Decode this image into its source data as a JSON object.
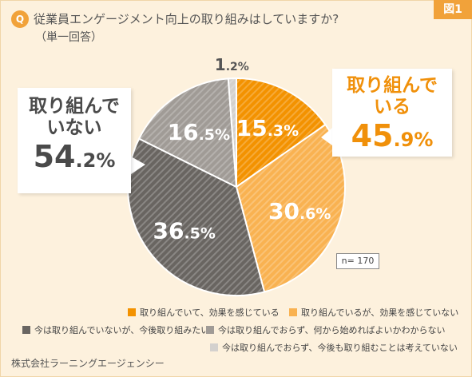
{
  "figure_label": "図1",
  "question_badge": "Q",
  "question": "従業員エンゲージメント向上の取り組みはしていますか?",
  "subtitle": "（単一回答）",
  "callout_left": {
    "title_line1": "取り組んで",
    "title_line2": "いない",
    "value_int": "54",
    "value_dec": ".2%"
  },
  "callout_right": {
    "title_line1": "取り組んで",
    "title_line2": "いる",
    "value_int": "45",
    "value_dec": ".9%"
  },
  "sample_size": "n= 170",
  "company": "株式会社ラーニングエージェンシー",
  "colors": {
    "bright_orange": "#f39200",
    "light_orange": "#f9b251",
    "dark_gray": "#696561",
    "mid_gray": "#a09b96",
    "light_gray": "#d4d1ce"
  },
  "chart_data": {
    "type": "pie",
    "title": "従業員エンゲージメント向上の取り組みはしていますか?",
    "slices": [
      {
        "label": "取り組んでいて、効果を感じている",
        "value": 15.3,
        "display_int": "15",
        "display_dec": ".3%",
        "color": "#f39200"
      },
      {
        "label": "取り組んでいるが、効果を感じていない",
        "value": 30.6,
        "display_int": "30",
        "display_dec": ".6%",
        "color": "#f9b251"
      },
      {
        "label": "今は取り組んでいないが、今後取り組みたい",
        "value": 36.5,
        "display_int": "36",
        "display_dec": ".5%",
        "color": "#696561"
      },
      {
        "label": "今は取り組んでおらず、何から始めればよいかわからない",
        "value": 16.5,
        "display_int": "16",
        "display_dec": ".5%",
        "color": "#a09b96"
      },
      {
        "label": "今は取り組んでおらず、今後も取り組むことは考えていない",
        "value": 1.2,
        "display_int": "1",
        "display_dec": ".2%",
        "color": "#d4d1ce"
      }
    ],
    "start_angle": "12 o'clock",
    "direction": "clockwise"
  }
}
